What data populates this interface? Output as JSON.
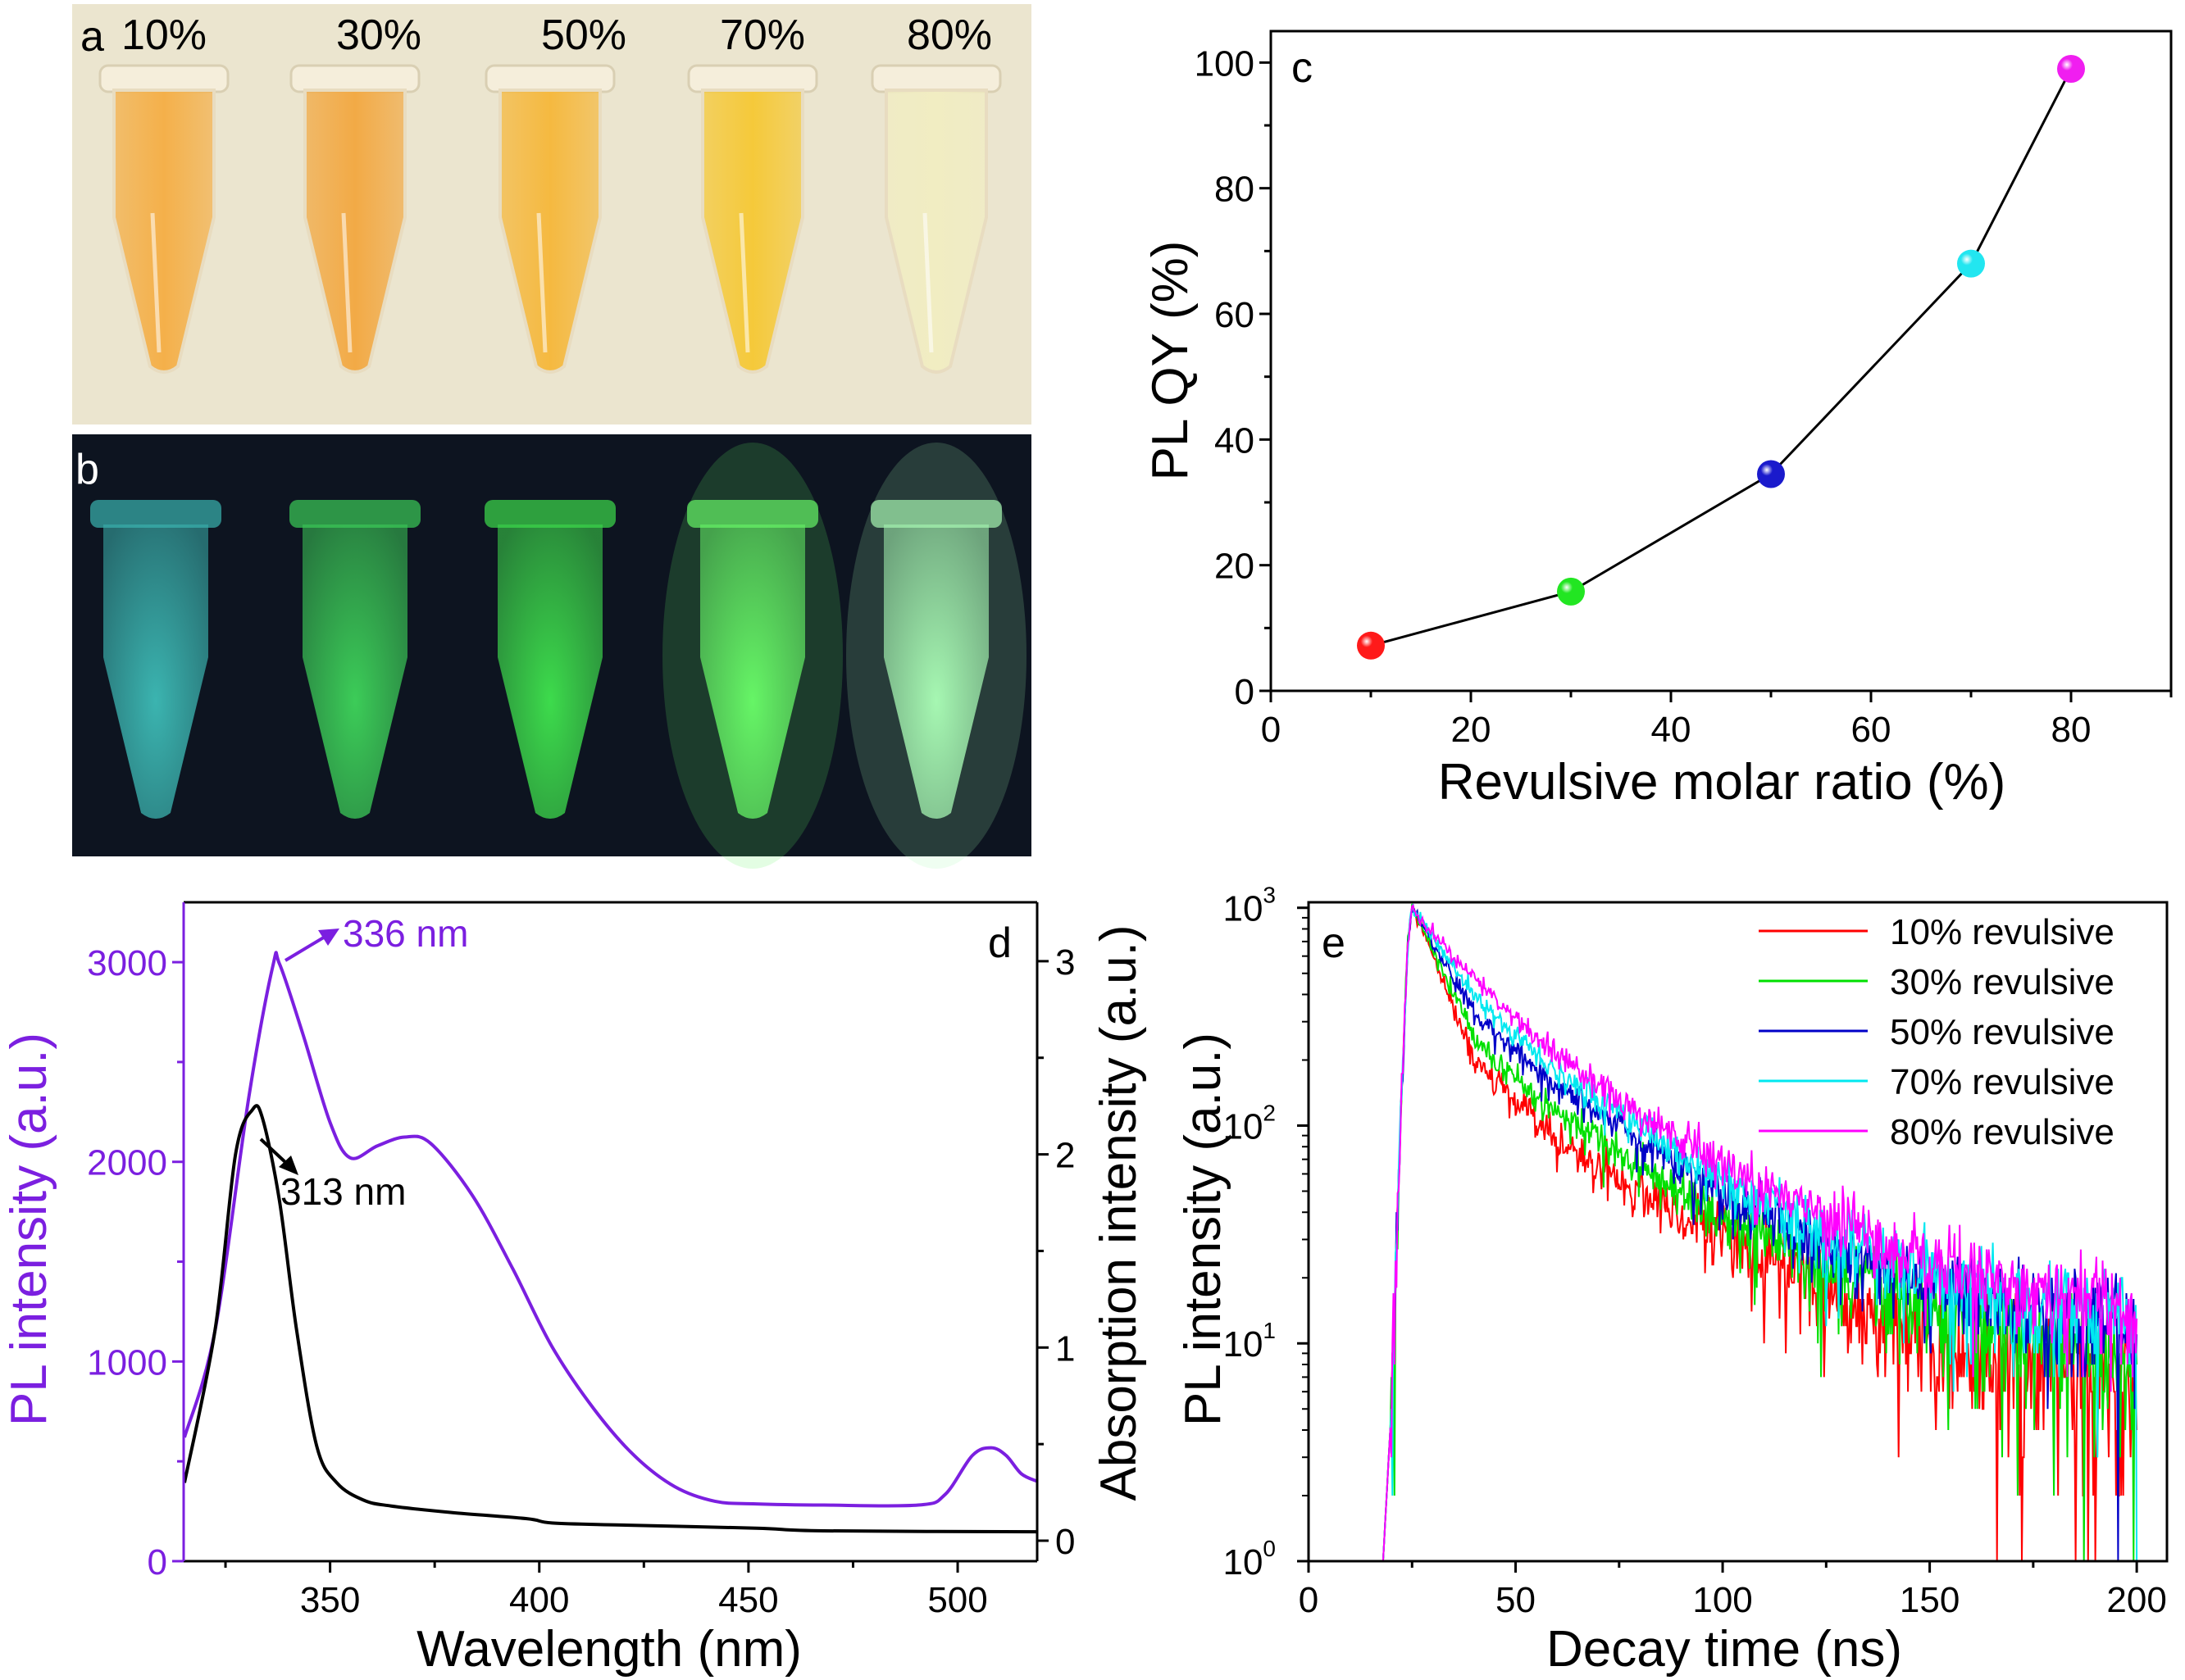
{
  "panel_a": {
    "label": "a",
    "background": "#ebe5cf",
    "tubes": [
      {
        "label": "10%",
        "liquid": "#f4b04a"
      },
      {
        "label": "30%",
        "liquid": "#f2aa46"
      },
      {
        "label": "50%",
        "liquid": "#f5b940"
      },
      {
        "label": "70%",
        "liquid": "#f5c93a"
      },
      {
        "label": "80%",
        "liquid": "#f1edc2"
      }
    ]
  },
  "panel_b": {
    "label": "b",
    "background": "#0d1420",
    "tubes": [
      {
        "glow": "#3bb4b0"
      },
      {
        "glow": "#3ccc58"
      },
      {
        "glow": "#3ddb4c"
      },
      {
        "glow": "#66f566"
      },
      {
        "glow": "#a6f7b2"
      }
    ]
  },
  "chart_data": [
    {
      "panel_label": "c",
      "type": "line",
      "xlabel": "Revulsive molar ratio (%)",
      "ylabel": "PL QY (%)",
      "xlim": [
        0,
        90
      ],
      "ylim": [
        0,
        105
      ],
      "xticks": [
        0,
        20,
        40,
        60,
        80
      ],
      "yticks": [
        0,
        20,
        40,
        60,
        80,
        100
      ],
      "grid": false,
      "x": [
        10,
        30,
        50,
        70,
        80
      ],
      "y": [
        7.2,
        15.8,
        34.5,
        68,
        99
      ],
      "point_colors": [
        "#ff1a1a",
        "#22e622",
        "#1a1acc",
        "#22e6f0",
        "#f01ef0"
      ],
      "line_color": "#000000"
    },
    {
      "panel_label": "d",
      "type": "line",
      "xlabel": "Wavelength (nm)",
      "ylabel_left": "PL intensity (a.u.)",
      "ylabel_right": "Absorption intensity (a.u.)",
      "xlim": [
        315,
        519
      ],
      "ylim_left": [
        0,
        3300
      ],
      "ylim_right": [
        -0.106,
        3.305
      ],
      "xticks": [
        350,
        400,
        450,
        500
      ],
      "yticks_left": [
        0,
        1000,
        2000,
        3000
      ],
      "yticks_right": [
        0,
        1,
        2,
        3
      ],
      "grid": false,
      "series": [
        {
          "axis": "left",
          "color": "#7b1fe0",
          "x": [
            315.2,
            322.5,
            330.6,
            336.3,
            337.9,
            343.5,
            350,
            354.8,
            361.3,
            367.8,
            374,
            384,
            393.6,
            403,
            413,
            422.7,
            432.4,
            442,
            451.8,
            468,
            490.6,
            497,
            503.5,
            508,
            511.6,
            515.2,
            519
          ],
          "y": [
            620,
            1155,
            2327,
            2979,
            2992,
            2640,
            2197,
            2020,
            2080,
            2124,
            2093,
            1832,
            1467,
            1076,
            764,
            529,
            373,
            300,
            287,
            281,
            281,
            334,
            529,
            568,
            529,
            438,
            400
          ]
        },
        {
          "axis": "right",
          "color": "#000000",
          "x": [
            315.2,
            322.5,
            327.4,
            331.4,
            333.8,
            337.9,
            342,
            346.8,
            351.6,
            358,
            364.5,
            379,
            397,
            403,
            419.5,
            451.8,
            468,
            519
          ],
          "y": [
            0.3,
            1.09,
            2.0,
            2.23,
            2.19,
            1.76,
            1.09,
            0.49,
            0.3,
            0.21,
            0.18,
            0.146,
            0.114,
            0.092,
            0.081,
            0.065,
            0.051,
            0.046
          ]
        }
      ],
      "annotations": [
        {
          "text": "336 nm",
          "color": "#7b1fe0"
        },
        {
          "text": "313 nm",
          "color": "#000000"
        }
      ]
    },
    {
      "panel_label": "e",
      "type": "line",
      "xlabel": "Decay time (ns)",
      "ylabel": "PL intensity (a.u.)",
      "xlim": [
        0,
        207.3
      ],
      "ylim": [
        1,
        1060
      ],
      "yscale": "log",
      "xticks": [
        0,
        50,
        100,
        150,
        200
      ],
      "yticks": [
        1,
        10,
        100,
        1000
      ],
      "grid": false,
      "legend": "top-right",
      "series": [
        {
          "name": "10% revulsive",
          "color": "#ff0000",
          "x": [
            25,
            30,
            40,
            50,
            60,
            80,
            100,
            125,
            150,
            175,
            200
          ],
          "y": [
            1000,
            600,
            200,
            125,
            85,
            50,
            31,
            17,
            10,
            7.5,
            6.5
          ]
        },
        {
          "name": "30% revulsive",
          "color": "#00e000",
          "x": [
            25,
            30,
            40,
            50,
            60,
            80,
            100,
            125,
            150,
            175,
            200
          ],
          "y": [
            1000,
            650,
            250,
            160,
            115,
            65,
            38,
            22,
            14,
            10,
            8
          ]
        },
        {
          "name": "50% revulsive",
          "color": "#0000c8",
          "x": [
            25,
            30,
            40,
            50,
            60,
            80,
            100,
            125,
            150,
            175,
            200
          ],
          "y": [
            1000,
            700,
            330,
            220,
            150,
            88,
            48,
            28,
            18,
            14,
            12
          ]
        },
        {
          "name": "70% revulsive",
          "color": "#00e8f0",
          "x": [
            25,
            30,
            40,
            50,
            60,
            80,
            100,
            125,
            150,
            175,
            200
          ],
          "y": [
            1000,
            730,
            400,
            260,
            175,
            100,
            55,
            32,
            21,
            16,
            13
          ]
        },
        {
          "name": "80% revulsive",
          "color": "#ff00ff",
          "x": [
            25,
            30,
            40,
            50,
            60,
            80,
            100,
            125,
            150,
            175,
            200
          ],
          "y": [
            1000,
            750,
            480,
            310,
            210,
            115,
            64,
            38,
            24,
            17,
            14
          ]
        }
      ]
    }
  ]
}
